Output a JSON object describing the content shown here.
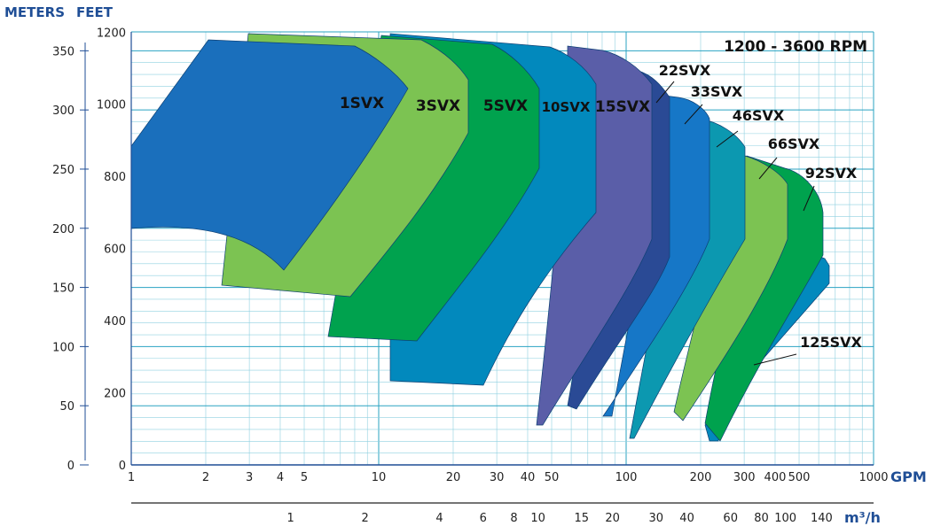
{
  "header": {
    "meters": "METERS",
    "feet": "FEET"
  },
  "chart_data": {
    "type": "area",
    "title": "1200 - 3600 RPM",
    "xlabel": "GPM",
    "x2label": "m³/h",
    "ylabel_left": "METERS",
    "ylabel_right": "FEET",
    "x_scale": "log",
    "xlim": [
      1,
      1000
    ],
    "ylim_meters": [
      0,
      380
    ],
    "ylim_feet": [
      0,
      1250
    ],
    "x_ticks": [
      "1",
      "2",
      "3",
      "4",
      "5",
      "10",
      "20",
      "30",
      "40",
      "50",
      "100",
      "200",
      "300",
      "400",
      "500",
      "1000"
    ],
    "x2_ticks": [
      "1",
      "2",
      "4",
      "6",
      "8",
      "10",
      "15",
      "20",
      "30",
      "40",
      "60",
      "80",
      "100",
      "140"
    ],
    "y_meters_ticks": [
      "0",
      "50",
      "100",
      "150",
      "200",
      "250",
      "300",
      "350"
    ],
    "y_feet_ticks": [
      "200",
      "400",
      "600",
      "800",
      "1000",
      "1200"
    ],
    "grid": true,
    "series": [
      {
        "name": "1SVX",
        "color": "#1a6fbc"
      },
      {
        "name": "3SVX",
        "color": "#7cc352"
      },
      {
        "name": "5SVX",
        "color": "#00a24e"
      },
      {
        "name": "10SVX",
        "color": "#0289bd"
      },
      {
        "name": "15SVX",
        "color": "#5a5ea8"
      },
      {
        "name": "22SVX",
        "color": "#2a4a95"
      },
      {
        "name": "33SVX",
        "color": "#1677c7"
      },
      {
        "name": "46SVX",
        "color": "#0c98b0"
      },
      {
        "name": "66SVX",
        "color": "#7cc352"
      },
      {
        "name": "92SVX",
        "color": "#00a24e"
      },
      {
        "name": "125SVX",
        "color": "#0289bd"
      }
    ]
  }
}
